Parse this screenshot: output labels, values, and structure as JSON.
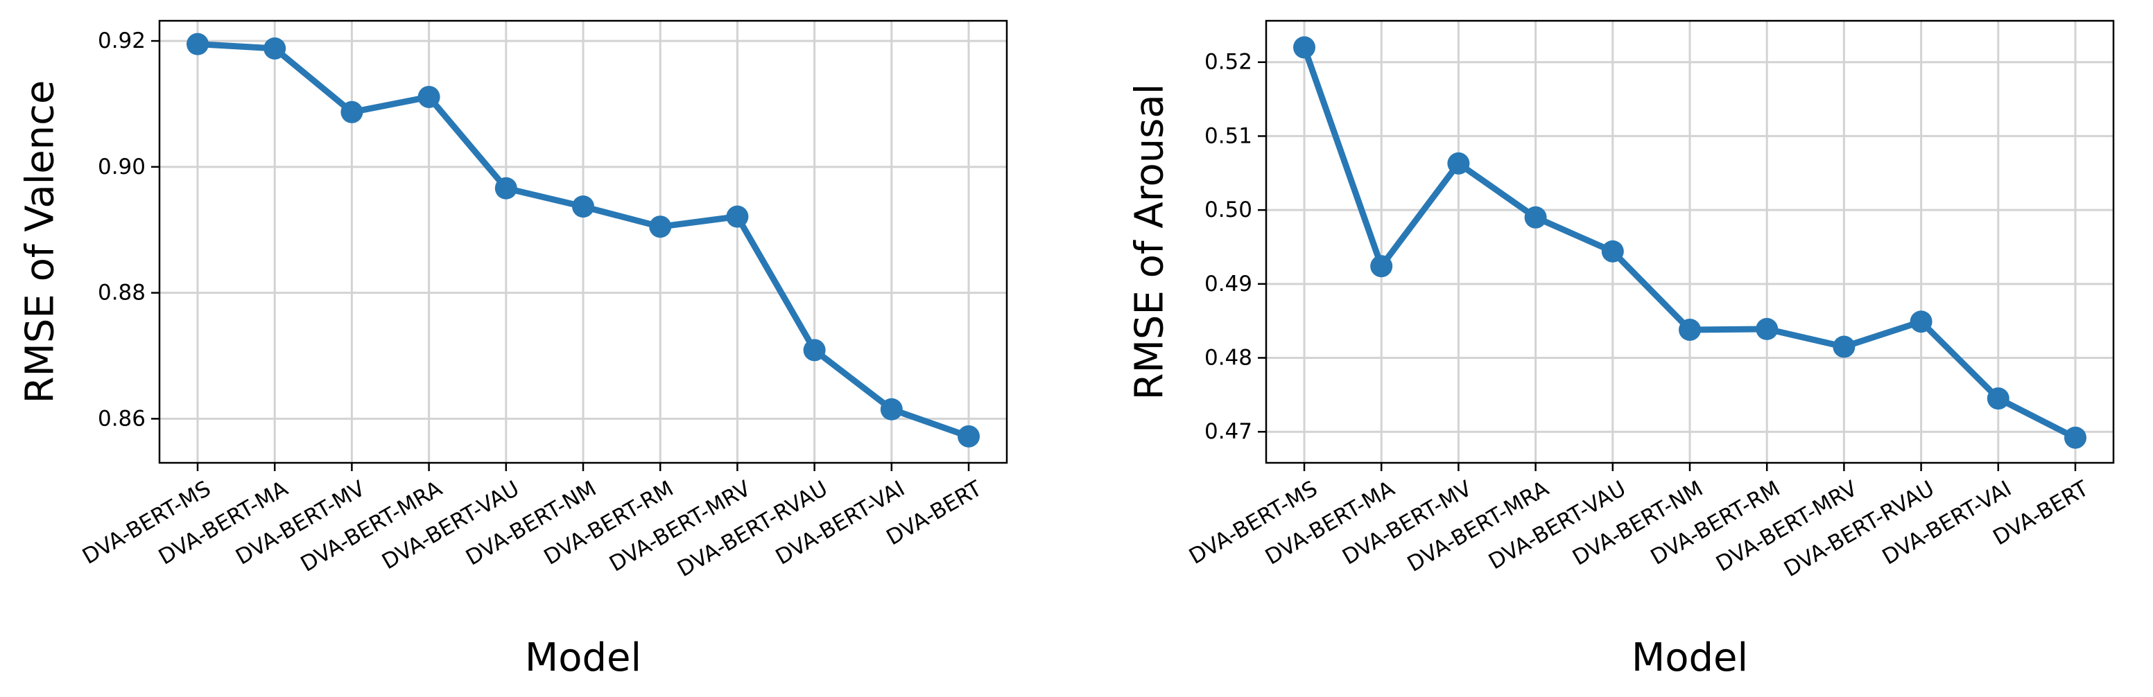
{
  "chart_data": [
    {
      "type": "line",
      "xlabel": "Model",
      "ylabel": "RMSE of Valence",
      "categories": [
        "DVA-BERT-MS",
        "DVA-BERT-MA",
        "DVA-BERT-MV",
        "DVA-BERT-MRA",
        "DVA-BERT-VAU",
        "DVA-BERT-NM",
        "DVA-BERT-RM",
        "DVA-BERT-MRV",
        "DVA-BERT-RVAU",
        "DVA-BERT-VAI",
        "DVA-BERT"
      ],
      "values": [
        0.9195,
        0.9188,
        0.9087,
        0.9111,
        0.8966,
        0.8937,
        0.8905,
        0.8921,
        0.8709,
        0.8615,
        0.8572
      ],
      "ylim": [
        0.853,
        0.9232
      ],
      "yticks": [
        0.86,
        0.88,
        0.9,
        0.92
      ],
      "ytick_labels": [
        "0.86",
        "0.88",
        "0.90",
        "0.92"
      ],
      "grid": true,
      "color": "#2878b5"
    },
    {
      "type": "line",
      "xlabel": "Model",
      "ylabel": "RMSE of Arousal",
      "categories": [
        "DVA-BERT-MS",
        "DVA-BERT-MA",
        "DVA-BERT-MV",
        "DVA-BERT-MRA",
        "DVA-BERT-VAU",
        "DVA-BERT-NM",
        "DVA-BERT-RM",
        "DVA-BERT-MRV",
        "DVA-BERT-RVAU",
        "DVA-BERT-VAI",
        "DVA-BERT"
      ],
      "values": [
        0.522,
        0.4924,
        0.5063,
        0.499,
        0.4944,
        0.4838,
        0.4839,
        0.4815,
        0.4849,
        0.4745,
        0.4692
      ],
      "ylim": [
        0.4658,
        0.5256
      ],
      "yticks": [
        0.47,
        0.48,
        0.49,
        0.5,
        0.51,
        0.52
      ],
      "ytick_labels": [
        "0.47",
        "0.48",
        "0.49",
        "0.50",
        "0.51",
        "0.52"
      ],
      "grid": true,
      "color": "#2878b5"
    }
  ]
}
